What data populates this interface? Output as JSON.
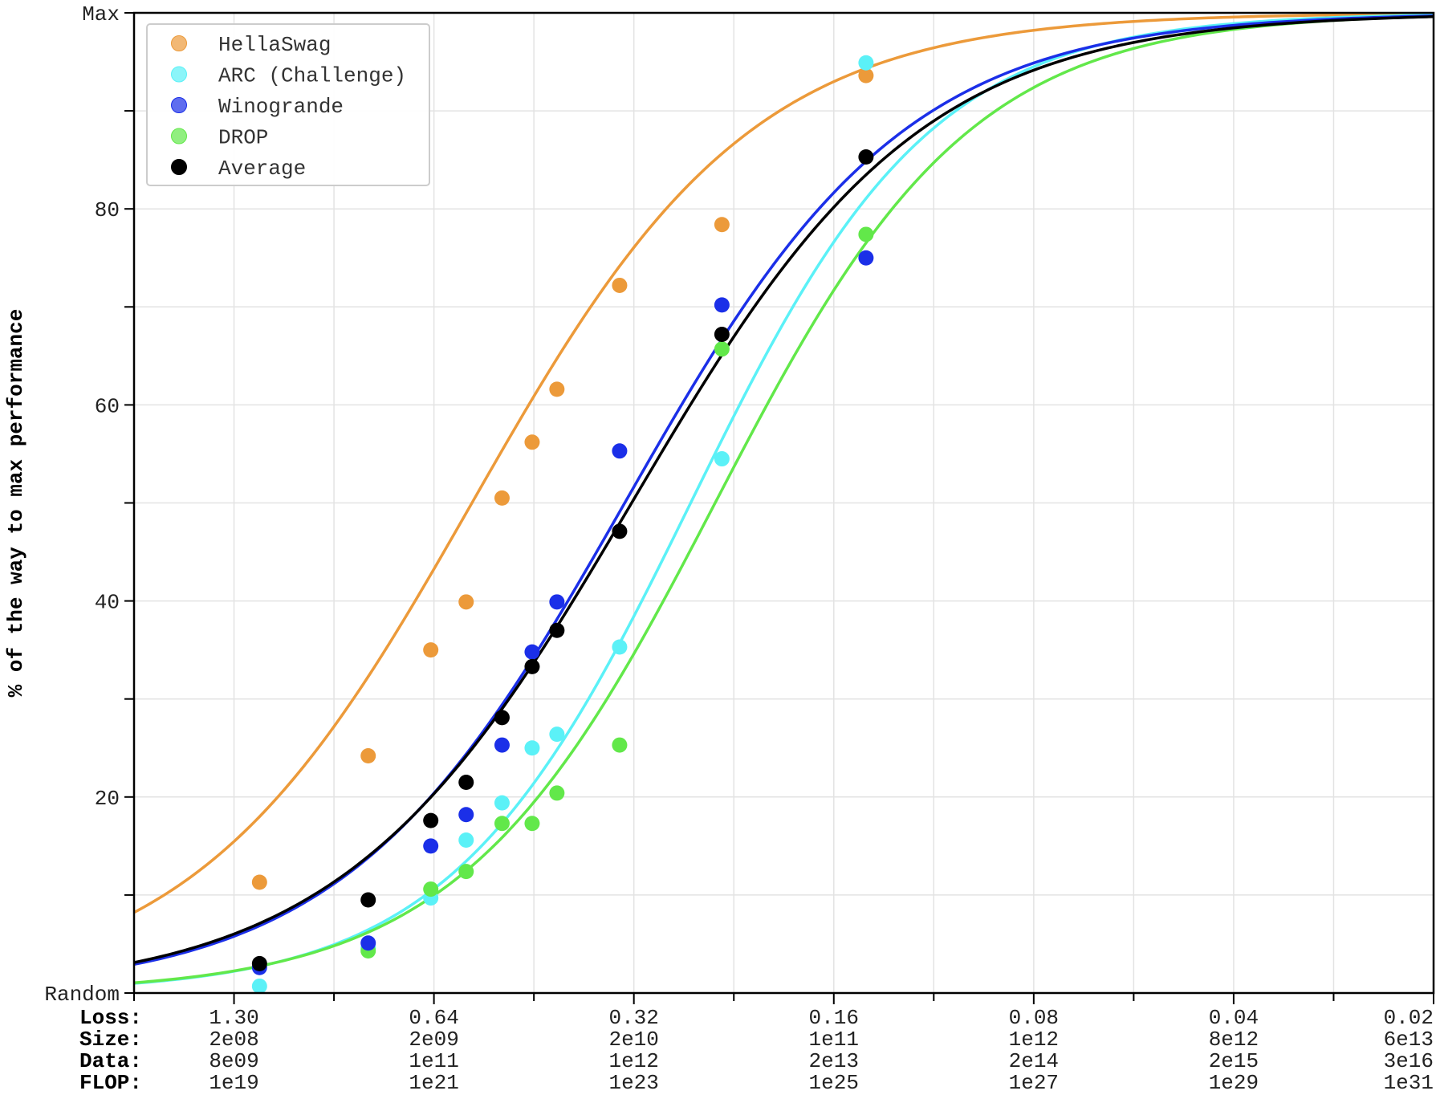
{
  "chart_data": {
    "type": "scatter",
    "ylabel": "% of the way to max performance",
    "y_ticks": [
      {
        "value": 0,
        "label": "Random"
      },
      {
        "value": 20,
        "label": "20"
      },
      {
        "value": 40,
        "label": "40"
      },
      {
        "value": 60,
        "label": "60"
      },
      {
        "value": 80,
        "label": "80"
      },
      {
        "value": 100,
        "label": "Max"
      }
    ],
    "ylim": [
      0,
      100
    ],
    "x_axis": {
      "scale": "log",
      "quantity": "FLOP",
      "xlim": [
        1e+18,
        1e+31
      ],
      "row_labels": [
        "Loss:",
        "Size:",
        "Data:",
        "FLOP:"
      ],
      "ticks": [
        {
          "flop": 1e+19,
          "loss": "1.30",
          "size": "2e08",
          "data": "8e09",
          "flop_label": "1e19"
        },
        {
          "flop": 1e+21,
          "loss": "0.64",
          "size": "2e09",
          "data": "1e11",
          "flop_label": "1e21"
        },
        {
          "flop": 1e+23,
          "loss": "0.32",
          "size": "2e10",
          "data": "1e12",
          "flop_label": "1e23"
        },
        {
          "flop": 1e+25,
          "loss": "0.16",
          "size": "1e11",
          "data": "2e13",
          "flop_label": "1e25"
        },
        {
          "flop": 1e+27,
          "loss": "0.08",
          "size": "1e12",
          "data": "2e14",
          "flop_label": "1e27"
        },
        {
          "flop": 1e+29,
          "loss": "0.04",
          "size": "8e12",
          "data": "2e15",
          "flop_label": "1e29"
        },
        {
          "flop": 1e+31,
          "loss": "0.02",
          "size": "6e13",
          "data": "3e16",
          "flop_label": "1e31"
        }
      ]
    },
    "grid": true,
    "legend": {
      "position": "top-left"
    },
    "series": [
      {
        "name": "HellaSwag",
        "color": "#ec9a3a",
        "points": [
          {
            "x": 1.8e+19,
            "y": 11.3
          },
          {
            "x": 2.2e+20,
            "y": 24.2
          },
          {
            "x": 9.3e+20,
            "y": 35.0
          },
          {
            "x": 2.1e+21,
            "y": 39.9
          },
          {
            "x": 4.8e+21,
            "y": 50.5
          },
          {
            "x": 9.6e+21,
            "y": 56.2
          },
          {
            "x": 1.7e+22,
            "y": 61.6
          },
          {
            "x": 7.2e+22,
            "y": 72.2
          },
          {
            "x": 7.6e+23,
            "y": 78.4
          },
          {
            "x": 2.1e+25,
            "y": 93.6
          }
        ],
        "fit": {
          "midpoint_flop": 2.4e+21,
          "slope": 0.31
        }
      },
      {
        "name": "ARC (Challenge)",
        "color": "#5bf1f7",
        "points": [
          {
            "x": 1.8e+19,
            "y": 0.7
          },
          {
            "x": 2.2e+20,
            "y": 4.6
          },
          {
            "x": 9.3e+20,
            "y": 9.7
          },
          {
            "x": 2.1e+21,
            "y": 15.6
          },
          {
            "x": 4.8e+21,
            "y": 19.4
          },
          {
            "x": 9.6e+21,
            "y": 25.0
          },
          {
            "x": 1.7e+22,
            "y": 26.4
          },
          {
            "x": 7.2e+22,
            "y": 35.3
          },
          {
            "x": 7.6e+23,
            "y": 54.5
          },
          {
            "x": 2.1e+25,
            "y": 94.9
          }
        ],
        "fit": {
          "midpoint_flop": 3.7e+23,
          "slope": 0.36
        }
      },
      {
        "name": "Winogrande",
        "color": "#1b2fe8",
        "points": [
          {
            "x": 1.8e+19,
            "y": 2.6
          },
          {
            "x": 2.2e+20,
            "y": 5.1
          },
          {
            "x": 9.3e+20,
            "y": 15.0
          },
          {
            "x": 2.1e+21,
            "y": 18.2
          },
          {
            "x": 4.8e+21,
            "y": 25.3
          },
          {
            "x": 9.6e+21,
            "y": 34.8
          },
          {
            "x": 1.7e+22,
            "y": 39.9
          },
          {
            "x": 7.2e+22,
            "y": 55.3
          },
          {
            "x": 7.6e+23,
            "y": 70.2
          },
          {
            "x": 2.1e+25,
            "y": 75.0
          }
        ],
        "fit": {
          "midpoint_flop": 8.1e+22,
          "slope": 0.31
        }
      },
      {
        "name": "DROP",
        "color": "#62e84a",
        "points": [
          {
            "x": 2.2e+20,
            "y": 4.3
          },
          {
            "x": 9.3e+20,
            "y": 10.6
          },
          {
            "x": 2.1e+21,
            "y": 12.4
          },
          {
            "x": 4.8e+21,
            "y": 17.3
          },
          {
            "x": 9.6e+21,
            "y": 17.3
          },
          {
            "x": 1.7e+22,
            "y": 20.4
          },
          {
            "x": 7.2e+22,
            "y": 25.3
          },
          {
            "x": 7.6e+23,
            "y": 65.7
          },
          {
            "x": 2.1e+25,
            "y": 77.4
          }
        ],
        "fit": {
          "midpoint_flop": 6.5e+23,
          "slope": 0.34
        }
      },
      {
        "name": "Average",
        "color": "#000000",
        "points": [
          {
            "x": 1.8e+19,
            "y": 3.0
          },
          {
            "x": 2.2e+20,
            "y": 9.5
          },
          {
            "x": 9.3e+20,
            "y": 17.6
          },
          {
            "x": 2.1e+21,
            "y": 21.5
          },
          {
            "x": 4.8e+21,
            "y": 28.1
          },
          {
            "x": 9.6e+21,
            "y": 33.3
          },
          {
            "x": 1.7e+22,
            "y": 37.0
          },
          {
            "x": 7.2e+22,
            "y": 47.1
          },
          {
            "x": 7.6e+23,
            "y": 67.2
          },
          {
            "x": 2.1e+25,
            "y": 85.3
          }
        ],
        "fit": {
          "midpoint_flop": 9.5e+22,
          "slope": 0.3
        }
      }
    ]
  }
}
